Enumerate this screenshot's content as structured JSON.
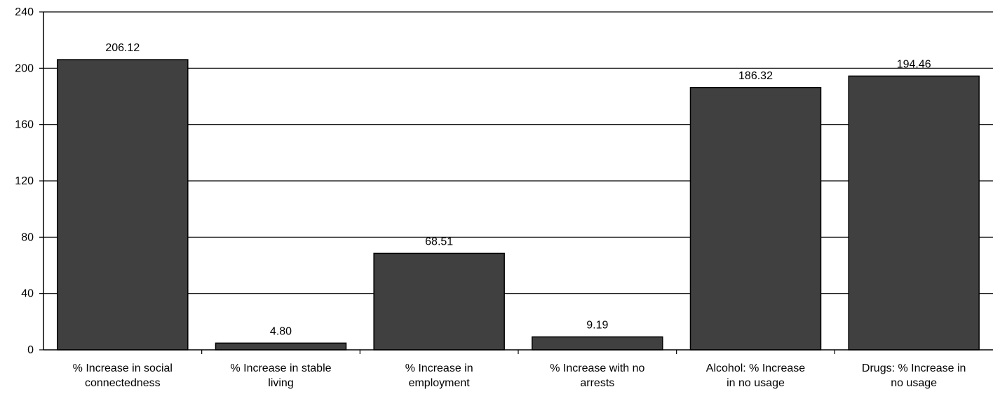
{
  "chart_data": {
    "type": "bar",
    "title": "",
    "xlabel": "",
    "ylabel": "",
    "ylim": [
      0,
      240
    ],
    "yticks": [
      0,
      40,
      80,
      120,
      160,
      200,
      240
    ],
    "grid": true,
    "categories": [
      [
        "% Increase in social",
        "connectedness"
      ],
      [
        "% Increase in stable",
        "living"
      ],
      [
        "% Increase in",
        "employment"
      ],
      [
        "% Increase with no",
        "arrests"
      ],
      [
        "Alcohol: % Increase",
        "in no usage"
      ],
      [
        "Drugs: % Increase in",
        "no usage"
      ]
    ],
    "values": [
      206.12,
      4.8,
      68.51,
      9.19,
      186.32,
      194.46
    ],
    "data_labels": [
      "206.12",
      "4.80",
      "68.51",
      "9.19",
      "186.32",
      "194.46"
    ],
    "colors": {
      "bar": "#404040",
      "bar_stroke": "#000000",
      "grid": "#000000"
    }
  }
}
